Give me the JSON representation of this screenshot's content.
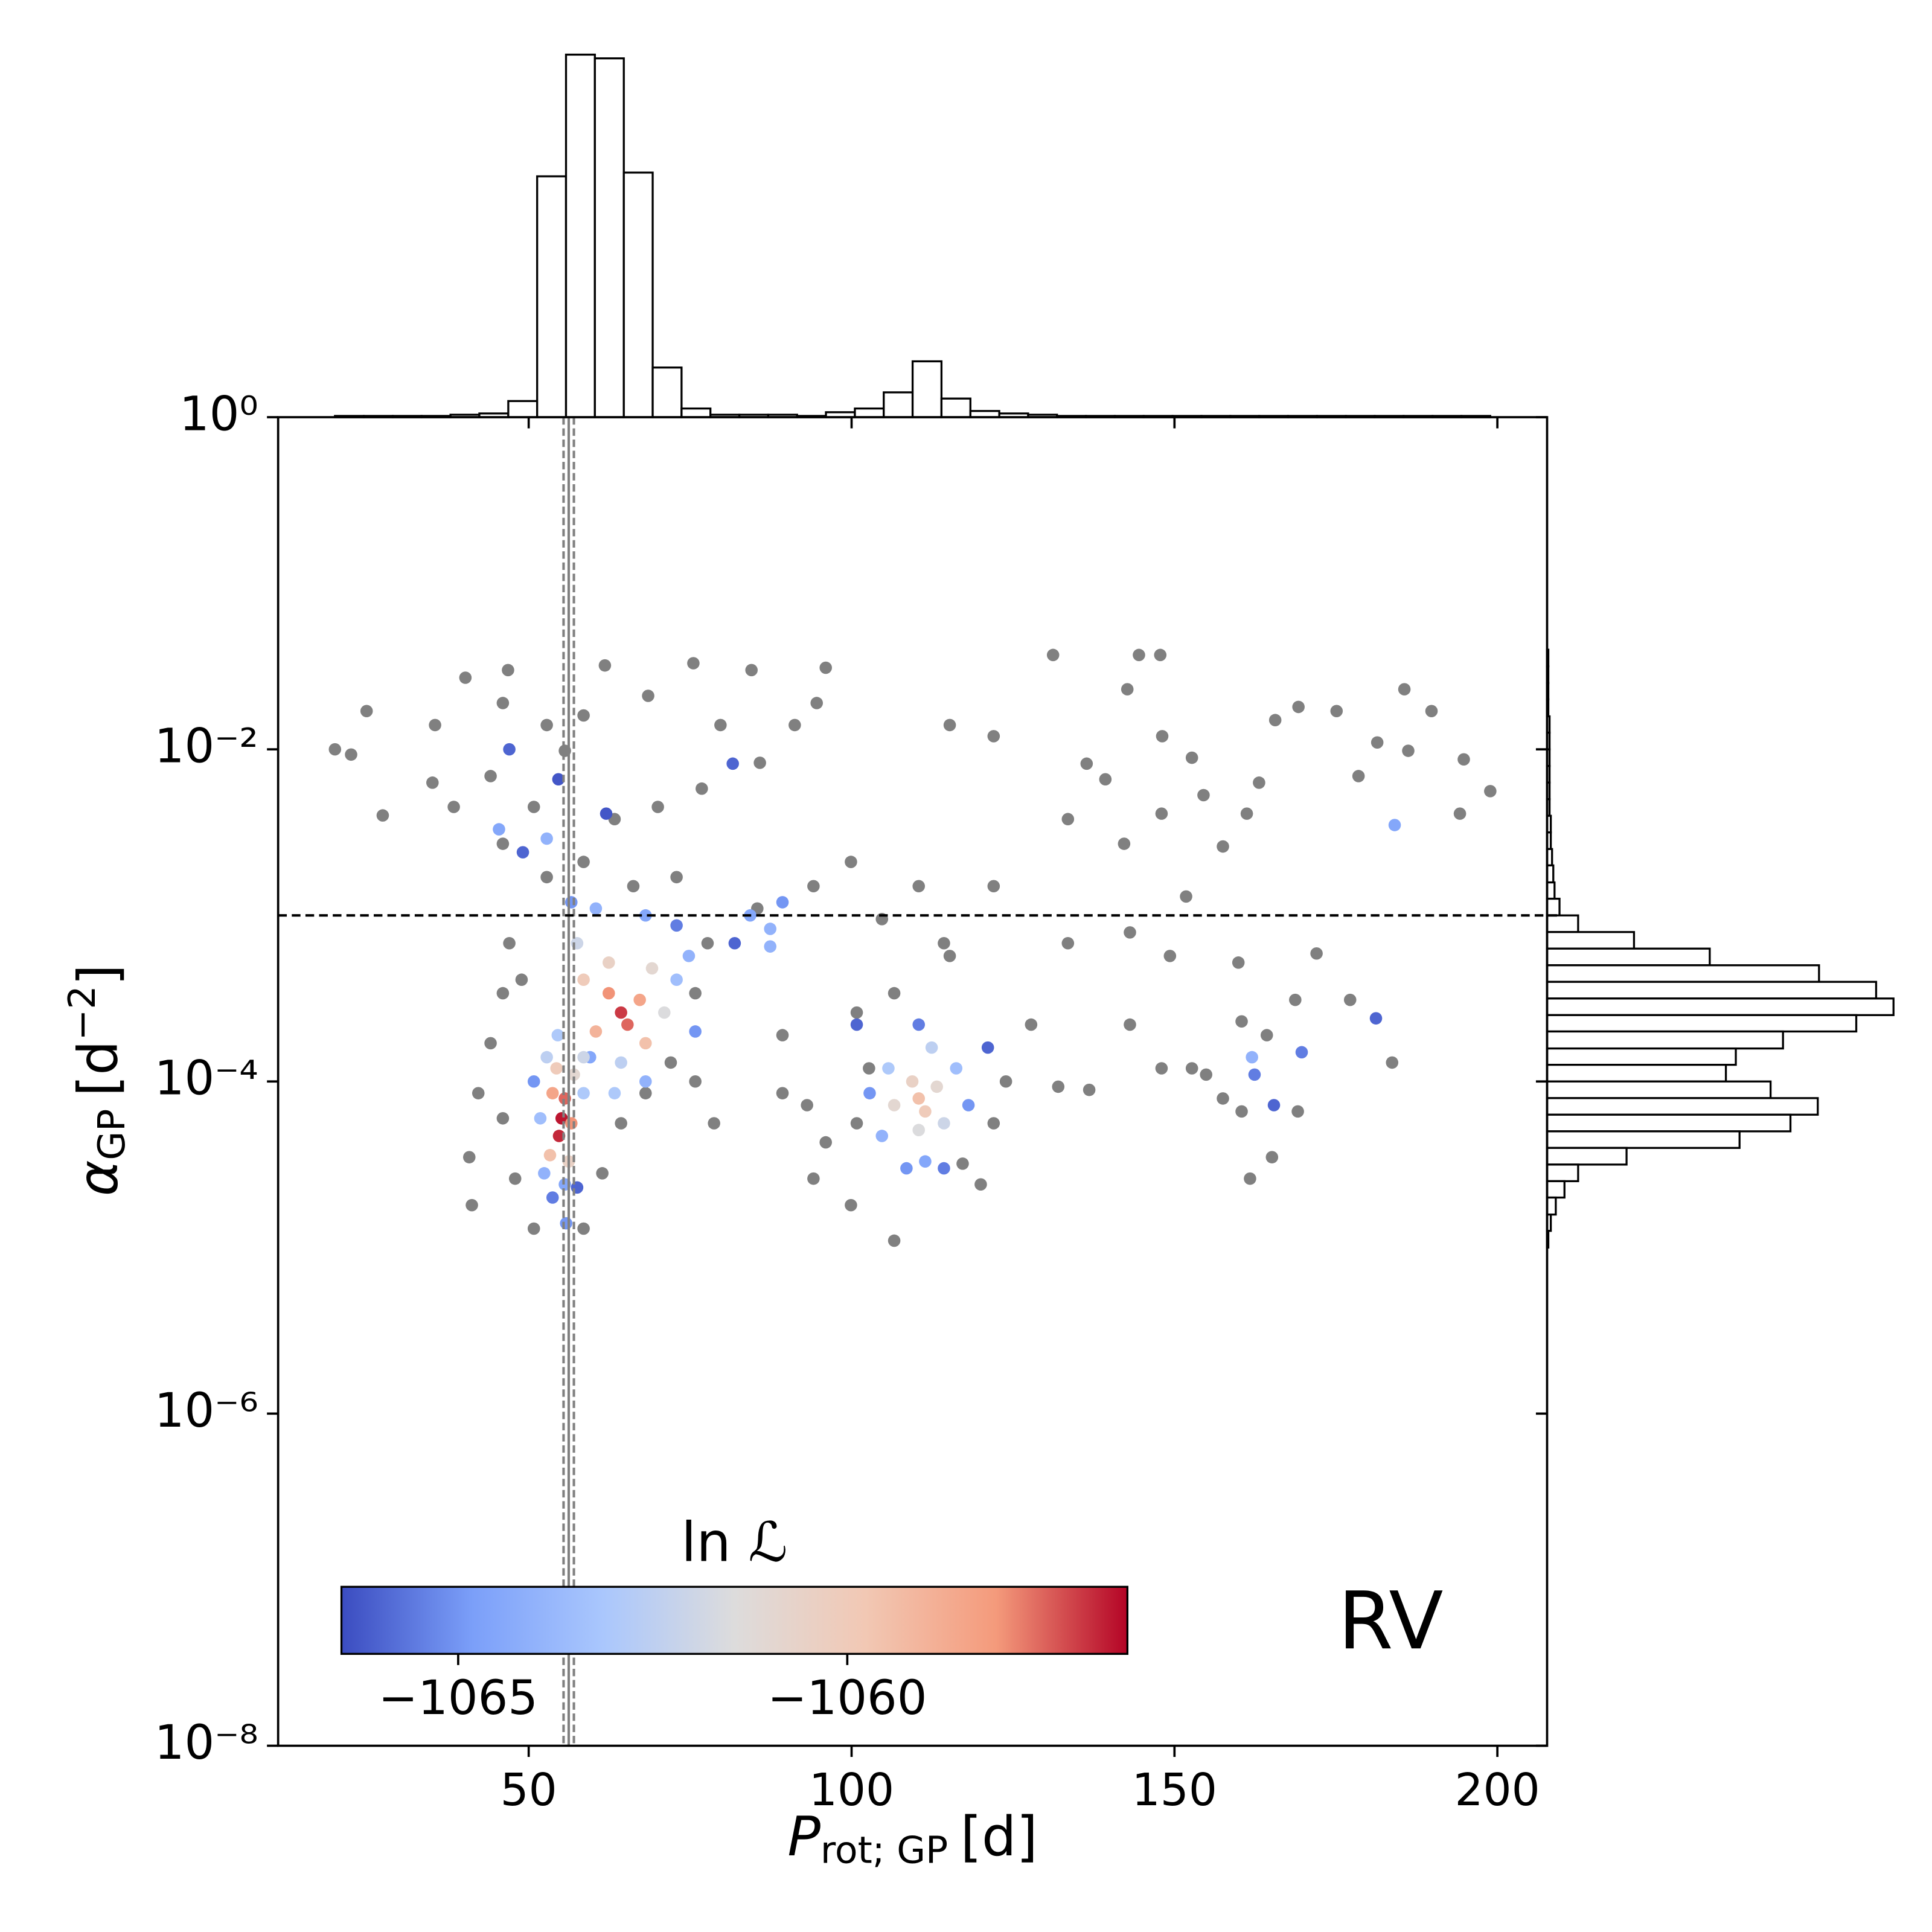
{
  "chart_data": {
    "type": "scatter",
    "xlabel": {
      "text": "P",
      "sub": "rot; GP",
      "unit": "[d]"
    },
    "ylabel": {
      "text": "α",
      "sub": "GP",
      "unit": "[d",
      "sup": "−2",
      "close": "]"
    },
    "annotation": "RV",
    "xlim": [
      11.2,
      207.7
    ],
    "xticks": [
      50,
      100,
      150,
      200
    ],
    "ylim": [
      1e-08,
      1
    ],
    "ylog": true,
    "yticks": [
      {
        "value": 1,
        "label": "10⁰"
      },
      {
        "value": 0.01,
        "label": "10⁻²"
      },
      {
        "value": 0.0001,
        "label": "10⁻⁴"
      },
      {
        "value": 1e-06,
        "label": "10⁻⁶"
      },
      {
        "value": 1e-08,
        "label": "10⁻⁸"
      }
    ],
    "series": [
      {
        "color": "#808080",
        "x": [
          20.0,
          22.5,
          27.4,
          24.9,
          40.2,
          46.8,
          35.5,
          35.1,
          38.4,
          44.1,
          46.0,
          52.8,
          61.8,
          68.5,
          75.5,
          84.5,
          96.0,
          79.7,
          85.8,
          91.2,
          94.6,
          115.2,
          122.0,
          131.2,
          144.5,
          147.8,
          142.7,
          169.2,
          175.1,
          185.6,
          189.8,
          165.6,
          181.4,
          194.8,
          198.9,
          194.2,
          186.2,
          178.5,
          163.1,
          161.2,
          152.7,
          148.1,
          154.5,
          148.0,
          139.3,
          133.5,
          136.4,
          142.2,
          157.5,
          151.8,
          143.1,
          149.3,
          159.9,
          172.0,
          168.7,
          177.2,
          160.4,
          164.3,
          143.1,
          133.5,
          122.0,
          110.4,
          104.7,
          99.9,
          94.1,
          85.4,
          148.0,
          152.7,
          157.5,
          160.4,
          169.1,
          165.1,
          161.7,
          183.7,
          132.0,
          136.8,
          154.9,
          41.2,
          40.8,
          42.2,
          44.1,
          46.0,
          47.0,
          48.9,
          50.8,
          47.9,
          46.0,
          58.5,
          61.4,
          64.3,
          68.1,
          72.0,
          75.8,
          77.7,
          72.9,
          66.2,
          58.5,
          52.8,
          63.3,
          70.0,
          76.8,
          55.6,
          58.5,
          50.8,
          46.0,
          78.7,
          75.8,
          93.1,
          94.1,
          96.0,
          99.9,
          100.8,
          106.6,
          102.7,
          100.8,
          106.6,
          115.2,
          120.0,
          122.0,
          123.9,
          127.8,
          89.3,
          89.3,
          117.2,
          114.3
        ],
        "values": [
          0.01,
          0.0093,
          0.004,
          0.017,
          0.027,
          0.03,
          0.014,
          0.0063,
          0.0045,
          0.0069,
          0.019,
          0.014,
          0.032,
          0.021,
          0.033,
          0.03,
          0.031,
          0.014,
          0.0083,
          0.014,
          0.019,
          0.014,
          0.012,
          0.037,
          0.037,
          0.037,
          0.023,
          0.018,
          0.017,
          0.023,
          0.017,
          0.015,
          0.011,
          0.0087,
          0.0056,
          0.0041,
          0.0098,
          0.0069,
          0.0063,
          0.0041,
          0.0089,
          0.012,
          0.0053,
          0.0041,
          0.0066,
          0.0038,
          0.0082,
          0.0027,
          0.0026,
          0.0013,
          0.00079,
          0.00057,
          0.00052,
          0.00059,
          0.00031,
          0.00031,
          0.00023,
          0.00019,
          0.00022,
          0.00068,
          0.0015,
          0.0015,
          0.00095,
          0.0021,
          0.0015,
          0.0011,
          0.00012,
          0.00012,
          7.9e-05,
          6.6e-05,
          6.6e-05,
          3.5e-05,
          2.6e-05,
          0.00013,
          9.3e-05,
          8.9e-05,
          0.00011,
          1.8e-05,
          3.5e-05,
          8.5e-05,
          0.00017,
          0.00034,
          0.00068,
          0.00041,
          1.3e-05,
          2.6e-05,
          6e-05,
          1.3e-05,
          2.8e-05,
          5.6e-05,
          8.5e-05,
          0.00013,
          0.00034,
          0.00068,
          0.0017,
          0.0015,
          0.0021,
          0.0017,
          0.0038,
          0.0045,
          0.0058,
          0.0098,
          0.016,
          0.0045,
          0.0027,
          5.6e-05,
          0.0001,
          7.2e-05,
          2.6e-05,
          4.3e-05,
          1.8e-05,
          5.6e-05,
          1.1e-05,
          0.00012,
          0.00026,
          0.00034,
          0.00057,
          2.4e-05,
          5.6e-05,
          0.0001,
          0.00022,
          8.5e-05,
          0.00019,
          3.2e-05,
          0.00068
        ]
      },
      {
        "x": [
          47.0,
          45.4,
          52.8,
          49.1,
          54.6,
          62.0,
          81.6,
          89.3,
          84.3,
          87.4,
          87.4,
          81.9,
          184.1,
          181.2,
          169.7,
          162.0,
          162.4,
          165.4,
          55.1,
          54.7,
          55.6,
          53.7,
          56.6,
          53.3,
          56.2,
          54.3,
          57.0,
          52.8,
          58.5,
          51.8,
          52.4,
          55.6,
          53.7,
          57.5,
          55.8,
          50.8,
          59.5,
          54.5,
          64.3,
          65.3,
          62.4,
          67.2,
          60.4,
          68.1,
          58.5,
          62.4,
          69.1,
          71.0,
          57.5,
          64.3,
          72.9,
          58.5,
          60.4,
          68.1,
          56.6,
          72.9,
          74.8,
          75.8,
          68.1,
          63.3,
          110.4,
          111.4,
          109.4,
          113.2,
          106.6,
          110.4,
          114.3,
          112.4,
          105.7,
          116.2,
          104.7,
          111.4,
          118.1,
          102.8,
          110.4,
          100.8,
          114.3,
          121.1,
          108.5
        ],
        "values": [
          0.01,
          0.0033,
          0.0029,
          0.0024,
          0.0066,
          0.0041,
          0.0082,
          0.0012,
          0.001,
          0.00083,
          0.00065,
          0.00068,
          0.0035,
          0.00024,
          0.00015,
          0.00014,
          0.00011,
          7.2e-05,
          6e-05,
          4.7e-05,
          7.9e-05,
          8.5e-05,
          5.6e-05,
          3.6e-05,
          3.3e-05,
          0.00012,
          0.00011,
          0.00014,
          8.5e-05,
          6e-05,
          2.8e-05,
          2.4e-05,
          2e-05,
          2.3e-05,
          1.4e-05,
          0.0001,
          0.00014,
          0.00019,
          0.00026,
          0.00022,
          0.00034,
          0.00031,
          0.0002,
          0.00017,
          0.00041,
          0.00052,
          0.00048,
          0.00026,
          0.00068,
          0.00013,
          0.00041,
          0.00014,
          0.0011,
          0.001,
          0.0012,
          0.00087,
          0.00057,
          0.0002,
          0.0001,
          8.5e-05,
          7.9e-05,
          6.6e-05,
          0.0001,
          9.3e-05,
          7.2e-05,
          5.1e-05,
          5.6e-05,
          0.00016,
          0.00012,
          0.00012,
          4.7e-05,
          3.3e-05,
          7.2e-05,
          8.5e-05,
          0.00022,
          0.00022,
          3e-05,
          0.00016,
          3e-05
        ],
        "c": [
          -1066,
          -1064.5,
          -1064,
          -1066,
          -1066.3,
          -1066.3,
          -1066,
          -1065,
          -1064.5,
          -1064,
          -1064,
          -1066,
          -1064.5,
          -1066,
          -1065.5,
          -1064,
          -1065.5,
          -1066,
          -1056.6,
          -1056.8,
          -1057.5,
          -1058.5,
          -1058,
          -1059.5,
          -1060.5,
          -1060,
          -1061,
          -1062.5,
          -1063,
          -1063.5,
          -1064,
          -1064.5,
          -1065.5,
          -1066,
          -1065,
          -1065,
          -1064.5,
          -1063,
          -1057,
          -1057.5,
          -1058,
          -1058.5,
          -1059,
          -1059.5,
          -1060,
          -1060.5,
          -1061,
          -1061.5,
          -1062,
          -1062.5,
          -1063.5,
          -1062,
          -1064,
          -1064.5,
          -1065,
          -1065.5,
          -1064,
          -1065,
          -1064,
          -1063,
          -1059.5,
          -1060,
          -1060.5,
          -1061,
          -1061,
          -1061.5,
          -1062,
          -1062.5,
          -1063,
          -1063.5,
          -1064,
          -1064.5,
          -1065,
          -1065,
          -1065.5,
          -1066,
          -1065.5,
          -1066,
          -1065
        ]
      }
    ],
    "colorbar": {
      "label": "ln ℒ",
      "clim": [
        -1066.5,
        -1056.4
      ],
      "ticks": [
        {
          "value": -1065,
          "label": "−1065"
        },
        {
          "value": -1060,
          "label": "−1060"
        }
      ],
      "colormap": [
        "#3b4cc0",
        "#7b9ff9",
        "#aac7fd",
        "#dddcdc",
        "#f2c8b4",
        "#f49a7b",
        "#b40426"
      ]
    },
    "vlines": {
      "color": "#808080",
      "x": [
        55.4,
        56.2,
        57.0
      ]
    },
    "hline": {
      "color": "#000000",
      "y": 0.001
    },
    "top_histogram": {
      "bins": [
        20,
        24.47,
        28.95,
        33.42,
        37.89,
        42.36,
        46.84,
        51.31,
        55.78,
        60.25,
        64.73,
        69.2,
        73.67,
        78.14,
        82.62,
        87.09,
        91.56,
        96.03,
        100.51,
        104.98,
        109.45,
        113.92,
        118.4,
        122.87,
        127.34,
        131.81,
        136.29,
        140.76,
        145.23,
        149.7,
        154.18,
        158.65,
        163.12,
        167.59,
        172.07,
        176.54,
        181.01,
        185.48,
        189.96,
        194.43,
        198.9
      ],
      "counts": [
        1,
        1,
        1,
        1,
        2,
        3,
        13,
        194,
        292,
        289,
        197,
        40,
        7,
        2,
        2,
        2,
        1,
        4,
        7,
        20,
        45,
        15,
        5,
        3,
        2,
        1,
        1,
        1,
        1,
        1,
        1,
        1,
        1,
        1,
        1,
        1,
        1,
        1,
        1,
        1
      ]
    },
    "right_histogram": {
      "bins": [
        0.0398,
        0.0316,
        0.0251,
        0.02,
        0.0158,
        0.0126,
        0.01,
        0.00794,
        0.00631,
        0.00501,
        0.00398,
        0.00316,
        0.00251,
        0.002,
        0.00158,
        0.00126,
        0.001,
        0.000794,
        0.000631,
        0.000501,
        0.000398,
        0.000316,
        0.000251,
        0.0002,
        0.000158,
        0.000126,
        0.0001,
        7.94e-05,
        6.31e-05,
        5.01e-05,
        3.98e-05,
        3.16e-05,
        2.51e-05,
        2e-05,
        1.58e-05,
        1.26e-05,
        1e-05
      ],
      "counts": [
        1,
        1,
        1,
        1,
        2,
        2,
        2,
        2,
        2,
        2,
        3,
        3,
        4,
        5,
        6,
        10,
        25,
        70,
        131,
        219,
        265,
        279,
        249,
        190,
        152,
        144,
        180,
        218,
        196,
        155,
        64,
        25,
        14,
        7,
        3,
        1
      ]
    }
  }
}
